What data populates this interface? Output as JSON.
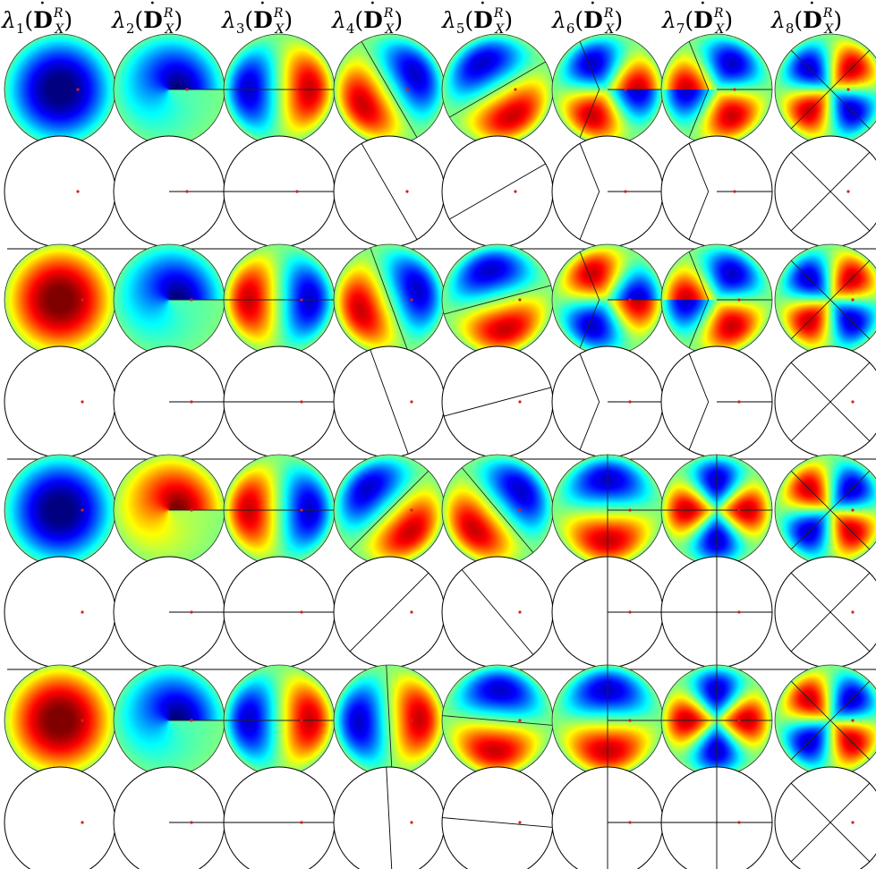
{
  "columns": [
    {
      "index": "1",
      "symbol": "λ",
      "operator": "D",
      "superscript": "R",
      "subscript": "X"
    },
    {
      "index": "2",
      "symbol": "λ",
      "operator": "D",
      "superscript": "R",
      "subscript": "X"
    },
    {
      "index": "3",
      "symbol": "λ",
      "operator": "D",
      "superscript": "R",
      "subscript": "X"
    },
    {
      "index": "4",
      "symbol": "λ",
      "operator": "D",
      "superscript": "R",
      "subscript": "X"
    },
    {
      "index": "5",
      "symbol": "λ",
      "operator": "D",
      "superscript": "R",
      "subscript": "X"
    },
    {
      "index": "6",
      "symbol": "λ",
      "operator": "D",
      "superscript": "R",
      "subscript": "X"
    },
    {
      "index": "7",
      "symbol": "λ",
      "operator": "D",
      "superscript": "R",
      "subscript": "X"
    },
    {
      "index": "8",
      "symbol": "λ",
      "operator": "D",
      "superscript": "R",
      "subscript": "X"
    }
  ],
  "colors": {
    "jet_low": "#00008f",
    "jet_mid": "#7fff7f",
    "jet_high": "#800000",
    "nodal_line": "#000000",
    "point_marker": "#d62020",
    "separator": "#000000"
  },
  "groups": [
    {
      "modes": [
        {
          "sign": -1,
          "m": 0,
          "orientation_deg": 0,
          "slit": false
        },
        {
          "sign": -1,
          "m": 0.5,
          "orientation_deg": 0,
          "slit": true
        },
        {
          "sign": 1,
          "m": 1,
          "orientation_deg": 0,
          "slit": true
        },
        {
          "sign": -1,
          "m": 1,
          "orientation_deg": 30,
          "slit": false
        },
        {
          "sign": 1,
          "m": 1,
          "orientation_deg": -60,
          "slit": false
        },
        {
          "sign": 1,
          "m": 1.5,
          "orientation_deg": 0,
          "slit": true
        },
        {
          "sign": -1,
          "m": 1.5,
          "orientation_deg": 180,
          "slit": true
        },
        {
          "sign": 1,
          "m": 2,
          "orientation_deg": 45,
          "slit": false
        }
      ]
    },
    {
      "modes": [
        {
          "sign": 1,
          "m": 0,
          "orientation_deg": 0,
          "slit": false
        },
        {
          "sign": -1,
          "m": 0.5,
          "orientation_deg": 0,
          "slit": true
        },
        {
          "sign": -1,
          "m": 1,
          "orientation_deg": 0,
          "slit": true
        },
        {
          "sign": -1,
          "m": 1,
          "orientation_deg": 20,
          "slit": false
        },
        {
          "sign": 1,
          "m": 1,
          "orientation_deg": -75,
          "slit": false
        },
        {
          "sign": -1,
          "m": 1.5,
          "orientation_deg": 0,
          "slit": true
        },
        {
          "sign": -1,
          "m": 1.5,
          "orientation_deg": 180,
          "slit": true
        },
        {
          "sign": 1,
          "m": 2,
          "orientation_deg": 45,
          "slit": false
        }
      ]
    },
    {
      "modes": [
        {
          "sign": -1,
          "m": 0,
          "orientation_deg": 0,
          "slit": false
        },
        {
          "sign": 1,
          "m": 0.5,
          "orientation_deg": 0,
          "slit": true
        },
        {
          "sign": -1,
          "m": 1,
          "orientation_deg": 0,
          "slit": true
        },
        {
          "sign": 1,
          "m": 1,
          "orientation_deg": -45,
          "slit": false
        },
        {
          "sign": -1,
          "m": 1,
          "orientation_deg": 40,
          "slit": false
        },
        {
          "sign": -1,
          "m": 1,
          "orientation_deg": 90,
          "slit": true
        },
        {
          "sign": 1,
          "m": 2,
          "orientation_deg": 0,
          "slit": true
        },
        {
          "sign": -1,
          "m": 2,
          "orientation_deg": 45,
          "slit": false
        }
      ]
    },
    {
      "modes": [
        {
          "sign": 1,
          "m": 0,
          "orientation_deg": 0,
          "slit": false
        },
        {
          "sign": -1,
          "m": 0.5,
          "orientation_deg": 0,
          "slit": true
        },
        {
          "sign": 1,
          "m": 1,
          "orientation_deg": 0,
          "slit": true
        },
        {
          "sign": 1,
          "m": 1,
          "orientation_deg": 3,
          "slit": false
        },
        {
          "sign": -1,
          "m": 1,
          "orientation_deg": 85,
          "slit": false
        },
        {
          "sign": -1,
          "m": 1,
          "orientation_deg": 90,
          "slit": true
        },
        {
          "sign": 1,
          "m": 2,
          "orientation_deg": 0,
          "slit": true
        },
        {
          "sign": -1,
          "m": 2,
          "orientation_deg": 45,
          "slit": false
        }
      ]
    }
  ]
}
